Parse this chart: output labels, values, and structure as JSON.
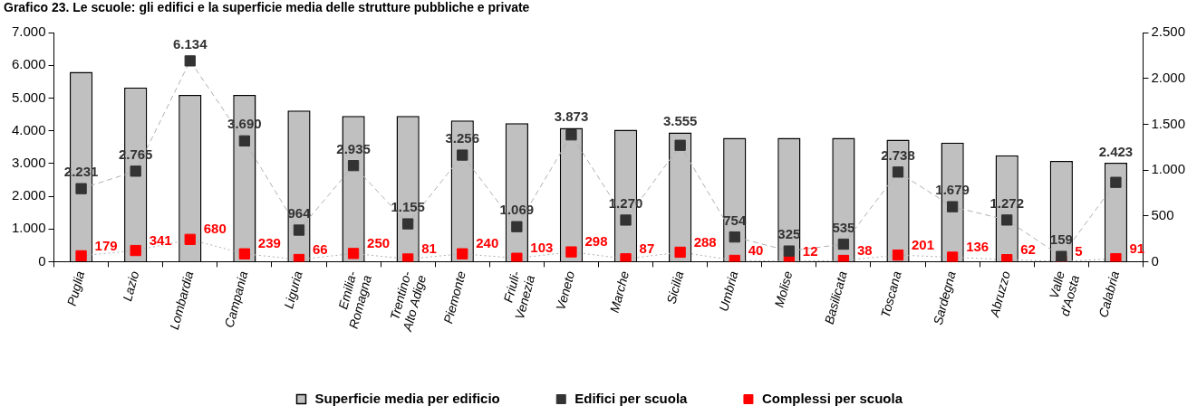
{
  "chart_data": {
    "type": "bar",
    "title": "Grafico 23. Le scuole: gli edifici e la superficie media delle strutture pubbliche e private",
    "categories": [
      "Puglia",
      "Lazio",
      "Lombardia",
      "Campania",
      "Liguria",
      "Emilia-Romagna",
      "Trentino-Alto Adige",
      "Piemonte",
      "Friuli-Venezia",
      "Veneto",
      "Marche",
      "Sicilia",
      "Umbria",
      "Molise",
      "Basilicata",
      "Toscana",
      "Sardegna",
      "Abruzzo",
      "Valle d'Aosta",
      "Calabria"
    ],
    "series": [
      {
        "name": "Superficie media per edificio",
        "axis": "y2",
        "color": "#c0c0c0",
        "values": [
          2070,
          1900,
          1820,
          1820,
          1650,
          1590,
          1590,
          1540,
          1510,
          1460,
          1440,
          1410,
          1350,
          1350,
          1350,
          1330,
          1300,
          1160,
          1100,
          1080
        ]
      },
      {
        "name": "Edifici per scuola",
        "type": "line",
        "color": "#333333",
        "line_style": "dashed",
        "values": [
          2231,
          2765,
          6134,
          3690,
          964,
          2935,
          1155,
          3256,
          1069,
          3873,
          1270,
          3555,
          754,
          325,
          535,
          2738,
          1679,
          1272,
          159,
          2423
        ],
        "value_labels": [
          "2.231",
          "2.765",
          "6.134",
          "3.690",
          "964",
          "2.935",
          "1.155",
          "3.256",
          "1.069",
          "3.873",
          "1.270",
          "3.555",
          "754",
          "325",
          "535",
          "2.738",
          "1.679",
          "1.272",
          "159",
          "2.423"
        ]
      },
      {
        "name": "Complessi per scuola",
        "type": "line",
        "color": "#ff0000",
        "line_style": "dotted",
        "data_labels": true,
        "values": [
          179,
          341,
          680,
          239,
          66,
          250,
          81,
          240,
          103,
          298,
          87,
          288,
          40,
          12,
          38,
          201,
          136,
          62,
          5,
          91
        ]
      }
    ],
    "ylim": [
      0,
      7000
    ],
    "yticks": [
      0,
      {
        "value": 1000,
        "label": "1.000"
      },
      {
        "value": 2000,
        "label": "2.000"
      },
      {
        "value": 3000,
        "label": "3.000"
      },
      {
        "value": 4000,
        "label": "4.000"
      },
      {
        "value": 5000,
        "label": "5.000"
      },
      {
        "value": 6000,
        "label": "6.000"
      },
      {
        "value": 7000,
        "label": "7.000"
      }
    ],
    "y2lim": [
      0,
      2500
    ],
    "y2ticks": [
      0,
      500,
      {
        "value": 1000,
        "label": "1.000"
      },
      {
        "value": 1500,
        "label": "1.500"
      },
      {
        "value": 2000,
        "label": "2.000"
      },
      {
        "value": 2500,
        "label": "2.500"
      }
    ],
    "grid": false,
    "legend": "bottom",
    "marker": "square"
  }
}
